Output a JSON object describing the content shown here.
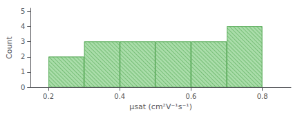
{
  "chart_data": {
    "type": "histogram",
    "bins": [
      0.2,
      0.3,
      0.4,
      0.5,
      0.6,
      0.7,
      0.8
    ],
    "values": [
      2,
      3,
      3,
      3,
      3,
      4
    ],
    "color": "#aaddaa",
    "xlabel": "μsat (cm²V⁻¹s⁻¹)",
    "ylabel": "Count",
    "xlim": [
      0.15,
      0.88
    ],
    "ylim": [
      0,
      5.2
    ],
    "xticks": [
      0.2,
      0.4,
      0.6,
      0.8
    ],
    "yticks": [
      0,
      1,
      2,
      3,
      4,
      5
    ],
    "grid": false
  }
}
